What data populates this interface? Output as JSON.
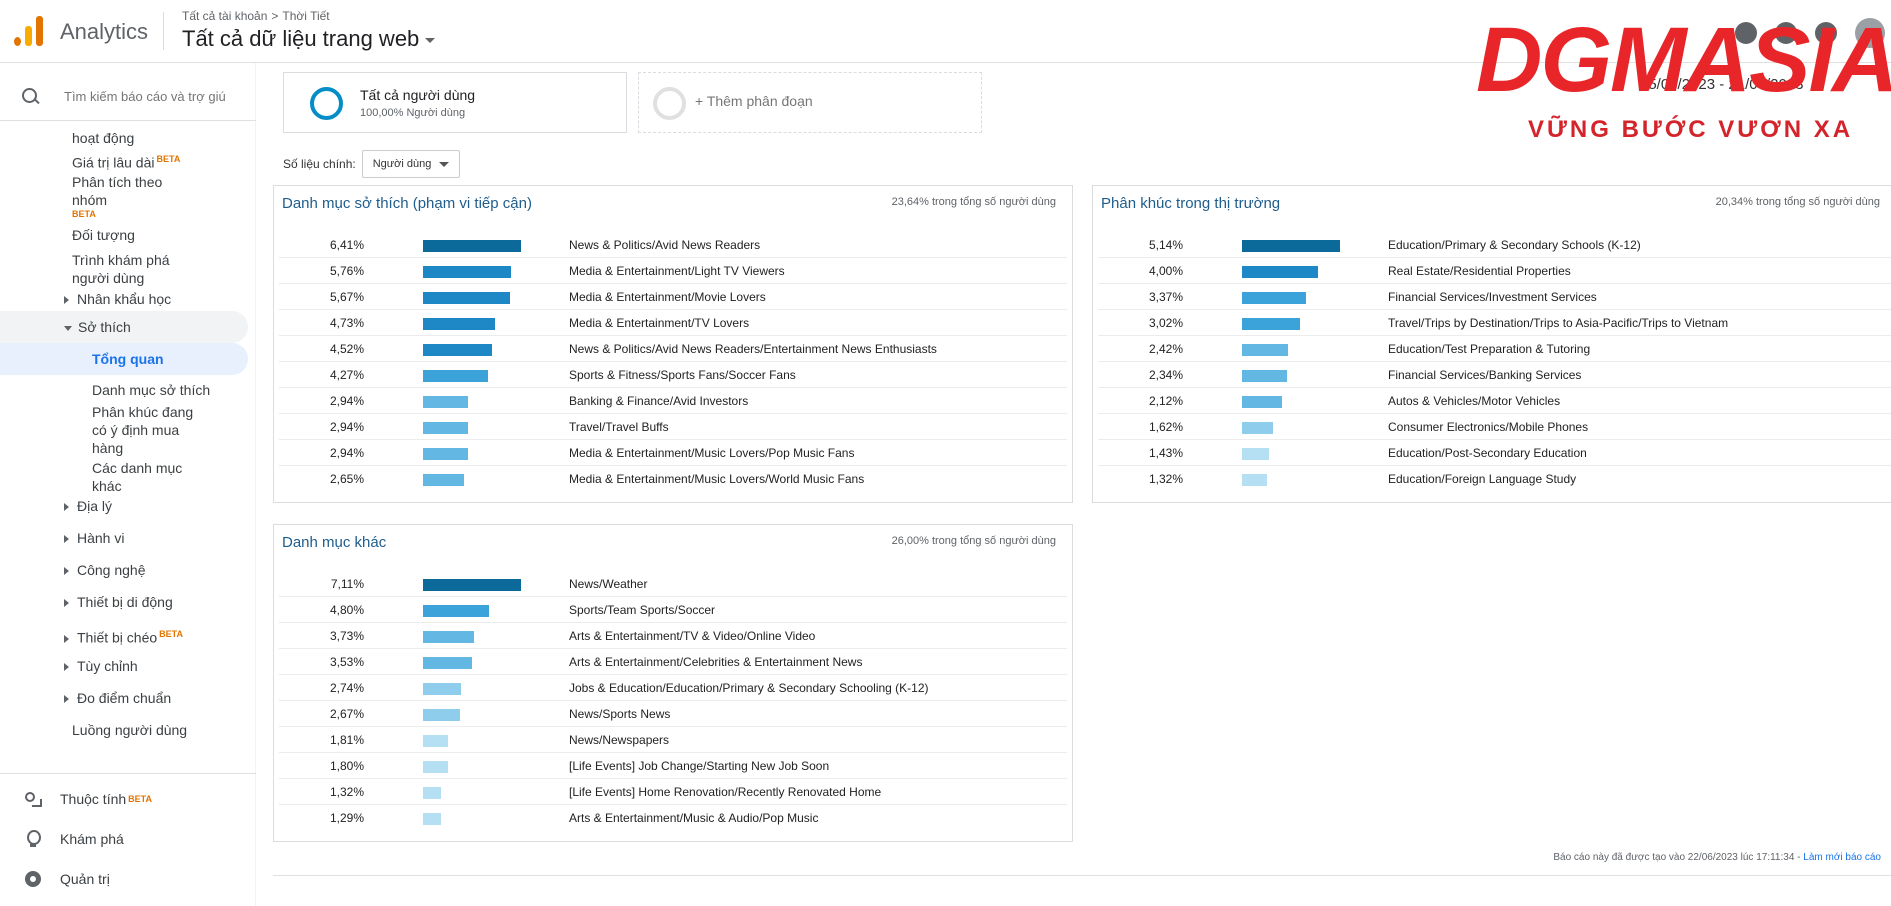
{
  "app": {
    "name": "Analytics"
  },
  "header": {
    "breadcrumb": [
      "Tất cả tài khoản",
      ">",
      "Thời Tiết"
    ],
    "view_title": "Tất cả dữ liệu trang web"
  },
  "watermark": {
    "text": "DGMASIA",
    "sub": "VỮNG BƯỚC VƯƠN XA"
  },
  "date_range_fragment": "15/05/2023 - 21/06/2023",
  "sidebar": {
    "search_placeholder": "Tìm kiếm báo cáo và trợ giú",
    "items": {
      "hoat_dong": "hoạt động",
      "gia_tri": "Giá trị lâu dài",
      "phan_tich_1": "Phân tích theo",
      "phan_tich_2": "nhóm",
      "doi_tuong": "Đối tượng",
      "trinh_1": "Trình khám phá",
      "trinh_2": "người dùng",
      "nhan_khau": "Nhân khẩu học",
      "so_thich": "Sở thích",
      "tong_quan": "Tổng quan",
      "danh_muc": "Danh mục sở thích",
      "phan_khuc_1": "Phân khúc đang",
      "phan_khuc_2": "có ý định mua",
      "phan_khuc_3": "hàng",
      "cac_1": "Các danh mục",
      "cac_2": "khác",
      "dia_ly": "Địa lý",
      "hanh_vi": "Hành vi",
      "cong_nghe": "Công nghệ",
      "thiet_bi_dd": "Thiết bị di động",
      "thiet_bi_cheo": "Thiết bị chéo",
      "tuy_chinh": "Tùy chỉnh",
      "do_diem": "Đo điểm chuẩn",
      "luong": "Luồng người dùng"
    },
    "beta": "BETA",
    "bottom": {
      "thuoc_tinh": "Thuộc tính",
      "kham_pha": "Khám phá",
      "quan_tri": "Quản trị"
    }
  },
  "segments": {
    "all_users_title": "Tất cả người dùng",
    "all_users_sub": "100,00% Người dùng",
    "add_segment": "+ Thêm phân đoạn"
  },
  "metric": {
    "label": "Số liệu chính:",
    "value": "Người dùng"
  },
  "cards": {
    "affinity": {
      "title": "Danh mục sở thích (phạm vi tiếp cận)",
      "pct_note": "23,64% trong tổng số người dùng",
      "rows": [
        {
          "pct": "6,41%",
          "value": 6.41,
          "label": "News & Politics/Avid News Readers"
        },
        {
          "pct": "5,76%",
          "value": 5.76,
          "label": "Media & Entertainment/Light TV Viewers"
        },
        {
          "pct": "5,67%",
          "value": 5.67,
          "label": "Media & Entertainment/Movie Lovers"
        },
        {
          "pct": "4,73%",
          "value": 4.73,
          "label": "Media & Entertainment/TV Lovers"
        },
        {
          "pct": "4,52%",
          "value": 4.52,
          "label": "News & Politics/Avid News Readers/Entertainment News Enthusiasts"
        },
        {
          "pct": "4,27%",
          "value": 4.27,
          "label": "Sports & Fitness/Sports Fans/Soccer Fans"
        },
        {
          "pct": "2,94%",
          "value": 2.94,
          "label": "Banking & Finance/Avid Investors"
        },
        {
          "pct": "2,94%",
          "value": 2.94,
          "label": "Travel/Travel Buffs"
        },
        {
          "pct": "2,94%",
          "value": 2.94,
          "label": "Media & Entertainment/Music Lovers/Pop Music Fans"
        },
        {
          "pct": "2,65%",
          "value": 2.65,
          "label": "Media & Entertainment/Music Lovers/World Music Fans"
        }
      ]
    },
    "inmarket": {
      "title": "Phân khúc trong thị trường",
      "pct_note": "20,34% trong tổng số người dùng",
      "rows": [
        {
          "pct": "5,14%",
          "value": 5.14,
          "label": "Education/Primary & Secondary Schools (K-12)"
        },
        {
          "pct": "4,00%",
          "value": 4.0,
          "label": "Real Estate/Residential Properties"
        },
        {
          "pct": "3,37%",
          "value": 3.37,
          "label": "Financial Services/Investment Services"
        },
        {
          "pct": "3,02%",
          "value": 3.02,
          "label": "Travel/Trips by Destination/Trips to Asia-Pacific/Trips to Vietnam"
        },
        {
          "pct": "2,42%",
          "value": 2.42,
          "label": "Education/Test Preparation & Tutoring"
        },
        {
          "pct": "2,34%",
          "value": 2.34,
          "label": "Financial Services/Banking Services"
        },
        {
          "pct": "2,12%",
          "value": 2.12,
          "label": "Autos & Vehicles/Motor Vehicles"
        },
        {
          "pct": "1,62%",
          "value": 1.62,
          "label": "Consumer Electronics/Mobile Phones"
        },
        {
          "pct": "1,43%",
          "value": 1.43,
          "label": "Education/Post-Secondary Education"
        },
        {
          "pct": "1,32%",
          "value": 1.32,
          "label": "Education/Foreign Language Study"
        }
      ]
    },
    "other": {
      "title": "Danh mục khác",
      "pct_note": "26,00% trong tổng số người dùng",
      "rows": [
        {
          "pct": "7,11%",
          "value": 7.11,
          "label": "News/Weather"
        },
        {
          "pct": "4,80%",
          "value": 4.8,
          "label": "Sports/Team Sports/Soccer"
        },
        {
          "pct": "3,73%",
          "value": 3.73,
          "label": "Arts & Entertainment/TV & Video/Online Video"
        },
        {
          "pct": "3,53%",
          "value": 3.53,
          "label": "Arts & Entertainment/Celebrities & Entertainment News"
        },
        {
          "pct": "2,74%",
          "value": 2.74,
          "label": "Jobs & Education/Education/Primary & Secondary Schooling (K-12)"
        },
        {
          "pct": "2,67%",
          "value": 2.67,
          "label": "News/Sports News"
        },
        {
          "pct": "1,81%",
          "value": 1.81,
          "label": "News/Newspapers"
        },
        {
          "pct": "1,80%",
          "value": 1.8,
          "label": "[Life Events] Job Change/Starting New Job Soon"
        },
        {
          "pct": "1,32%",
          "value": 1.32,
          "label": "[Life Events] Home Renovation/Recently Renovated Home"
        },
        {
          "pct": "1,29%",
          "value": 1.29,
          "label": "Arts & Entertainment/Music & Audio/Pop Music"
        }
      ]
    }
  },
  "bar_colors": [
    "#0b6a9a",
    "#1e88c7",
    "#3ba3d9",
    "#62b8e3",
    "#8fcdec",
    "#b5dff3"
  ],
  "footer": {
    "text": "Báo cáo này đã được tạo vào 22/06/2023 lúc 17:11:34 - ",
    "link": "Làm mới báo cáo"
  }
}
